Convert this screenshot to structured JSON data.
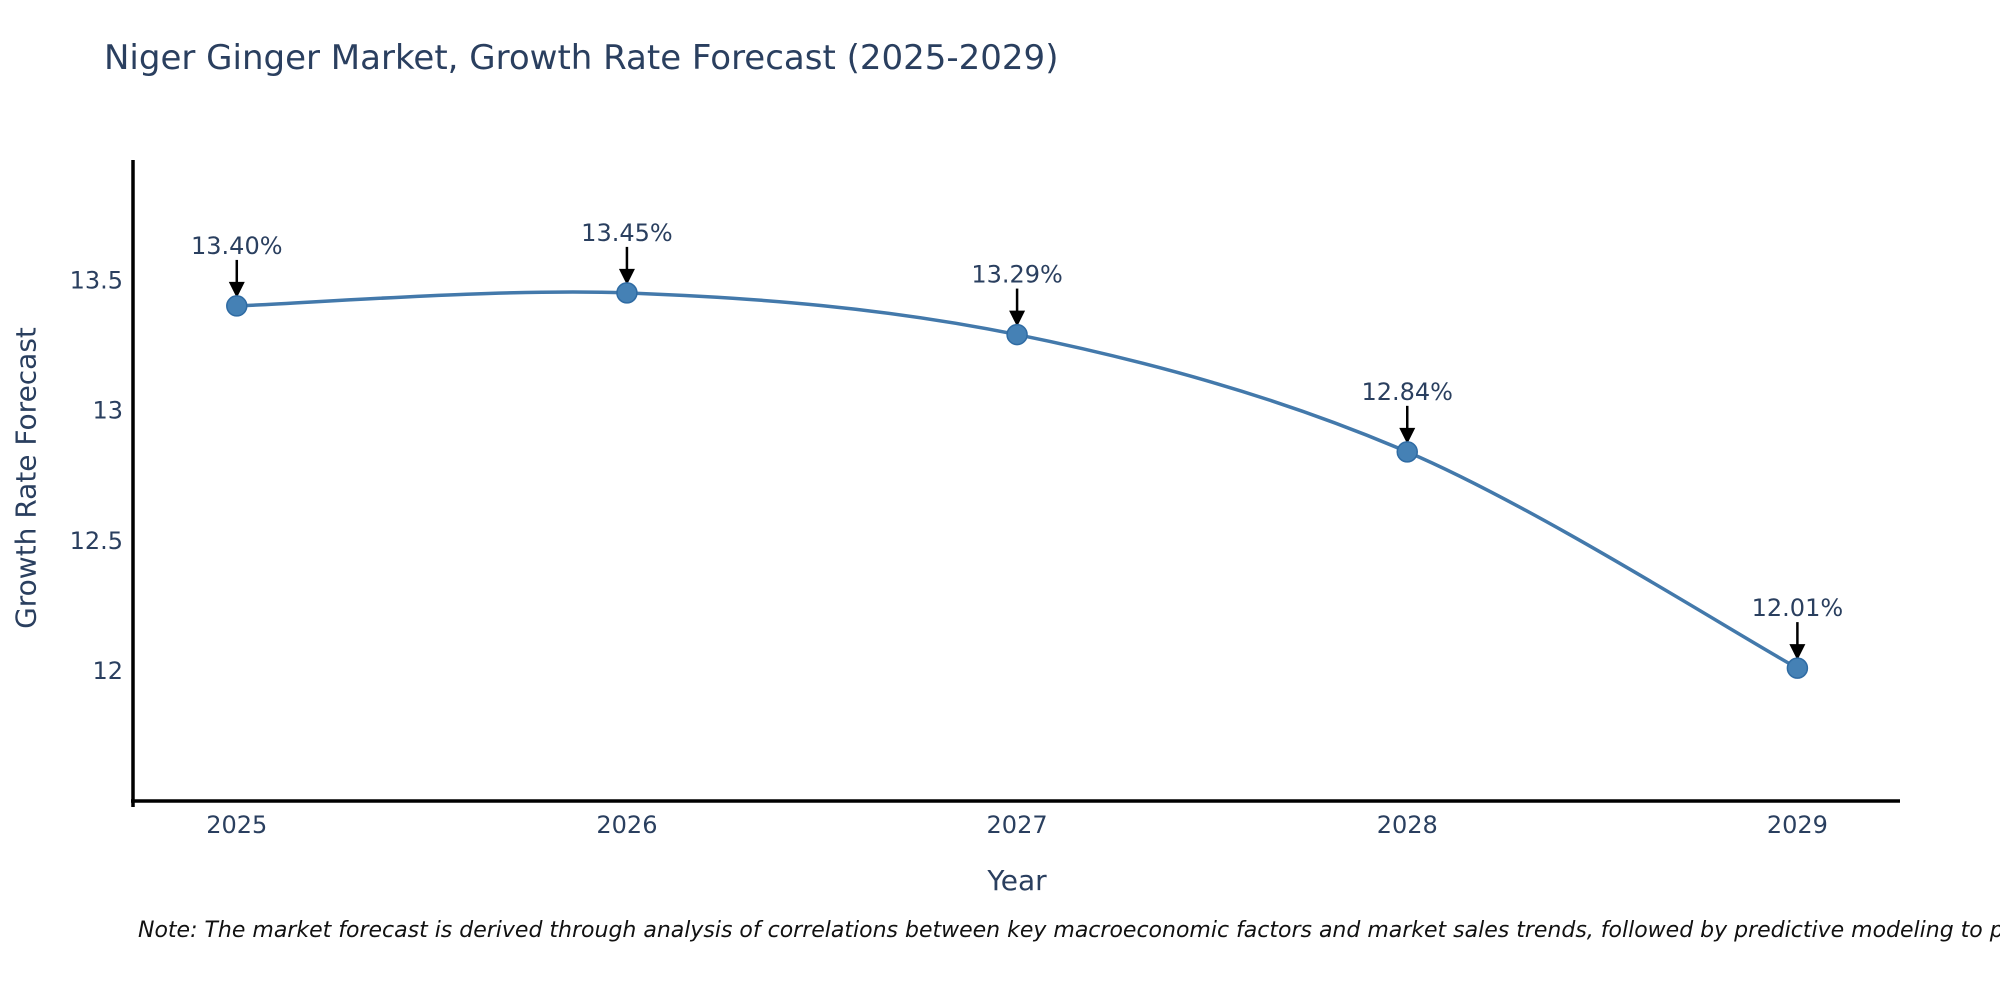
{
  "page": {
    "background": "#ffffff"
  },
  "chart_data": {
    "type": "line",
    "title": "Niger Ginger Market, Growth Rate Forecast (2025-2029)",
    "xlabel": "Year",
    "ylabel": "Growth Rate Forecast",
    "x": [
      2025,
      2026,
      2027,
      2028,
      2029
    ],
    "series": [
      {
        "name": "Growth Rate Forecast",
        "values": [
          13.4,
          13.45,
          13.29,
          12.84,
          12.01
        ]
      }
    ],
    "point_labels": [
      "13.40%",
      "13.45%",
      "13.29%",
      "12.84%",
      "12.01%"
    ],
    "xticks": {
      "values": [
        2025,
        2026,
        2027,
        2028,
        2029
      ],
      "labels": [
        "2025",
        "2026",
        "2027",
        "2028",
        "2029"
      ]
    },
    "yticks": {
      "values": [
        13.5,
        13,
        12.5,
        12
      ],
      "labels": [
        "13.5",
        "13",
        "12.5",
        "12"
      ]
    },
    "xlim": [
      2024.734,
      2029.263
    ],
    "ylim": [
      11.5,
      13.96
    ],
    "grid": false,
    "legend": "none",
    "line_shape": "spline",
    "markers": true,
    "annotations_have_arrows": true,
    "colors": {
      "line": "#4379ab",
      "marker_fill": "#4581b5",
      "marker_edge": "#2f6ba3",
      "axis_line": "#000000",
      "chart_text": "#2a3f5f",
      "annotation_arrow": "#000000",
      "note_text": "#111111"
    }
  },
  "note": {
    "text": "Note: The market forecast is derived through analysis of correlations between key macroeconomic factors and market sales trends, followed by predictive modeling to project future sales."
  }
}
